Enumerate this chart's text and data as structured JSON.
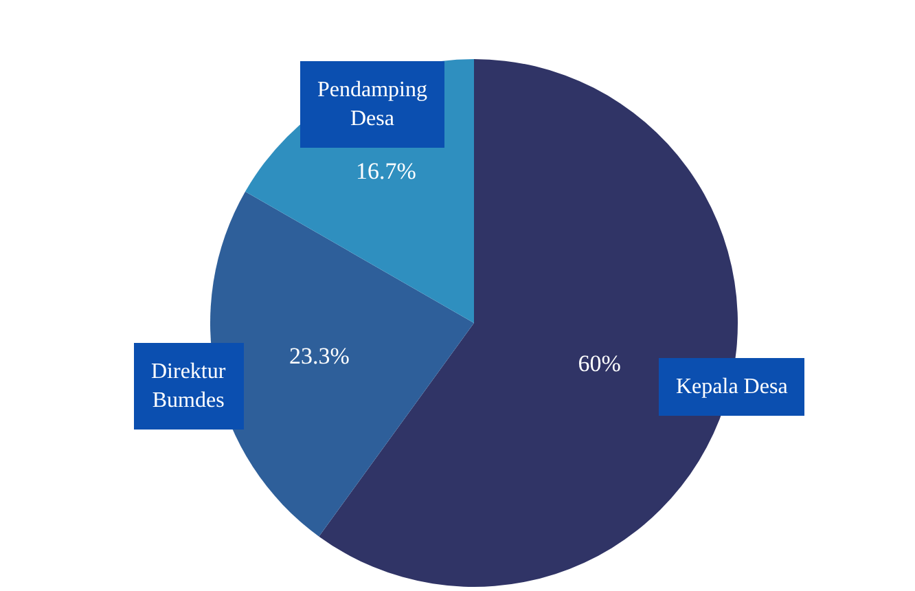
{
  "chart_data": {
    "type": "pie",
    "categories": [
      "Kepala Desa",
      "Direktur Bumdes",
      "Pendamping Desa"
    ],
    "values": [
      60,
      23.3,
      16.7
    ],
    "value_labels": [
      "60%",
      "23.3%",
      "16.7%"
    ],
    "colors": [
      "#303466",
      "#2e5f9a",
      "#2f8fbf"
    ],
    "legend": false
  }
}
